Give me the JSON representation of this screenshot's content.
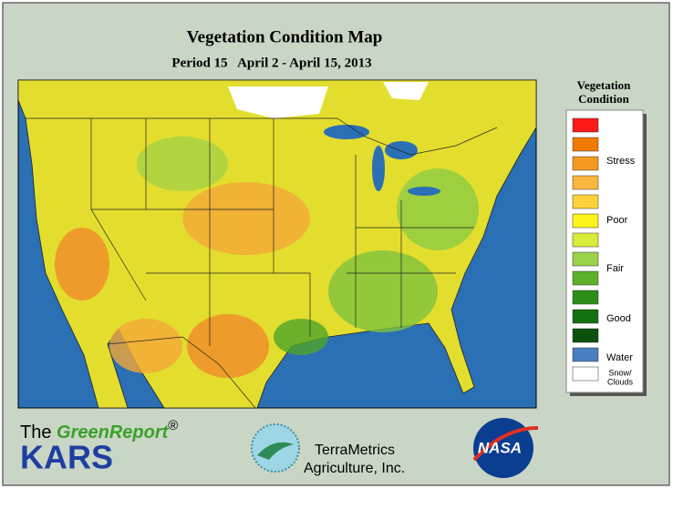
{
  "header": {
    "title": "Vegetation Condition Map",
    "subtitle": "Period 15   April 2 - April 15, 2013"
  },
  "legend": {
    "title": [
      "Vegetation",
      "Condition"
    ],
    "swatches": [
      "#ff1a1a",
      "#f07a00",
      "#f59a20",
      "#fbb840",
      "#fcd23a",
      "#fcf41a",
      "#d8ec3a",
      "#9ad24a",
      "#5cb02a",
      "#2e8e1a",
      "#137012",
      "#0b500c",
      "#4a7fc0",
      "#ffffff"
    ],
    "labels": [
      "Stress",
      "Poor",
      "Fair",
      "Good",
      "Water"
    ],
    "snow": [
      "Snow/",
      "Clouds"
    ]
  },
  "logos": {
    "the": "The",
    "greenreport": "GreenReport",
    "registered": "®",
    "kars": "KARS",
    "terrametrics": [
      "TerraMetrics",
      "Agriculture, Inc."
    ],
    "nasa": "NASA"
  }
}
